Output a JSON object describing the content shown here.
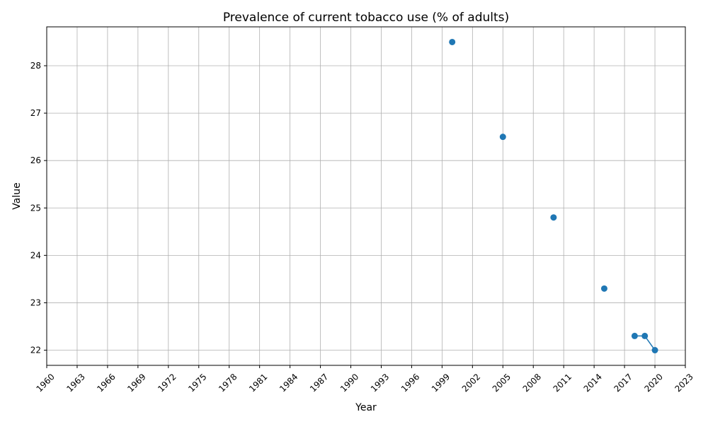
{
  "chart_data": {
    "type": "line",
    "title": "Prevalence of current tobacco use (% of adults)",
    "xlabel": "Year",
    "ylabel": "Value",
    "xlim": [
      1960,
      2023
    ],
    "ylim": [
      21.68,
      28.82
    ],
    "x_ticks": [
      1960,
      1963,
      1966,
      1969,
      1972,
      1975,
      1978,
      1981,
      1984,
      1987,
      1990,
      1993,
      1996,
      1999,
      2002,
      2005,
      2008,
      2011,
      2014,
      2017,
      2020,
      2023
    ],
    "y_ticks": [
      22,
      23,
      24,
      25,
      26,
      27,
      28
    ],
    "grid": true,
    "series": [
      {
        "x": [
          2000,
          2005,
          2010,
          2015,
          2018,
          2019,
          2020
        ],
        "y": [
          28.5,
          26.5,
          24.8,
          23.3,
          22.3,
          22.3,
          22.0
        ],
        "connected": [
          false,
          false,
          false,
          false,
          true,
          true,
          true
        ],
        "color": "#1f77b4"
      }
    ]
  }
}
